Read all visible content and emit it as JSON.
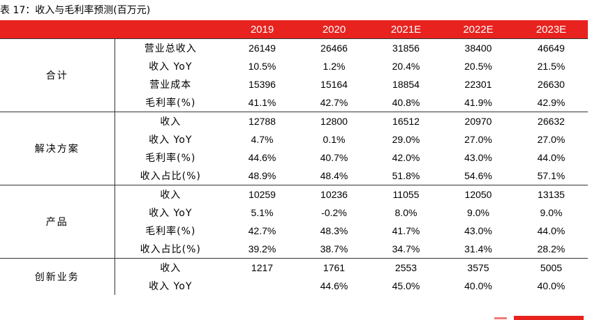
{
  "caption": "表 17：收入与毛利率预测(百万元)",
  "columns": [
    "",
    "",
    "2019",
    "2020",
    "2021E",
    "2022E",
    "2023E"
  ],
  "groups": [
    {
      "name": "合计",
      "rows": [
        {
          "label": "营业总收入",
          "values": [
            "26149",
            "26466",
            "31856",
            "38400",
            "46649"
          ]
        },
        {
          "label": "收入 YoY",
          "values": [
            "10.5%",
            "1.2%",
            "20.4%",
            "20.5%",
            "21.5%"
          ]
        },
        {
          "label": "营业成本",
          "values": [
            "15396",
            "15164",
            "18854",
            "22301",
            "26630"
          ]
        },
        {
          "label": "毛利率(%)",
          "values": [
            "41.1%",
            "42.7%",
            "40.8%",
            "41.9%",
            "42.9%"
          ]
        }
      ]
    },
    {
      "name": "解决方案",
      "rows": [
        {
          "label": "收入",
          "values": [
            "12788",
            "12800",
            "16512",
            "20970",
            "26632"
          ]
        },
        {
          "label": "收入 YoY",
          "values": [
            "4.7%",
            "0.1%",
            "29.0%",
            "27.0%",
            "27.0%"
          ]
        },
        {
          "label": "毛利率(%)",
          "values": [
            "44.6%",
            "40.7%",
            "42.0%",
            "43.0%",
            "44.0%"
          ]
        },
        {
          "label": "收入占比(%)",
          "values": [
            "48.9%",
            "48.4%",
            "51.8%",
            "54.6%",
            "57.1%"
          ]
        }
      ]
    },
    {
      "name": "产品",
      "rows": [
        {
          "label": "收入",
          "values": [
            "10259",
            "10236",
            "11055",
            "12050",
            "13135"
          ]
        },
        {
          "label": "收入 YoY",
          "values": [
            "5.1%",
            "-0.2%",
            "8.0%",
            "9.0%",
            "9.0%"
          ]
        },
        {
          "label": "毛利率(%)",
          "values": [
            "42.7%",
            "48.3%",
            "41.7%",
            "43.0%",
            "44.0%"
          ]
        },
        {
          "label": "收入占比(%)",
          "values": [
            "39.2%",
            "38.7%",
            "34.7%",
            "31.4%",
            "28.2%"
          ]
        }
      ]
    },
    {
      "name": "创新业务",
      "rows": [
        {
          "label": "收入",
          "values": [
            "1217",
            "1761",
            "2553",
            "3575",
            "5005"
          ]
        },
        {
          "label": "收入 YoY",
          "values": [
            "",
            "44.6%",
            "45.0%",
            "40.0%",
            "40.0%"
          ]
        }
      ]
    }
  ]
}
